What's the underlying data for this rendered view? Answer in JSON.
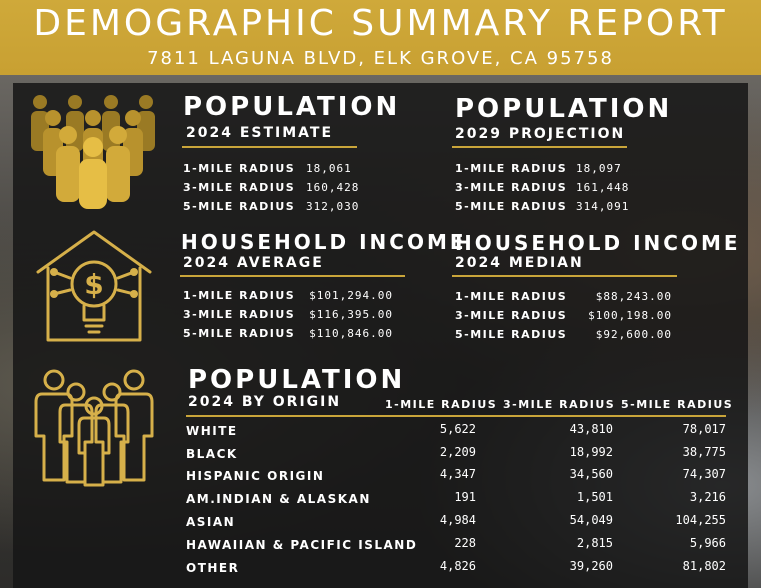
{
  "header": {
    "title": "DEMOGRAPHIC SUMMARY REPORT",
    "address": "7811 LAGUNA BLVD, ELK GROVE, CA 95758"
  },
  "colors": {
    "gold": "#c9a53a",
    "panel": "#161616",
    "text": "#ffffff"
  },
  "icons": [
    "people-group-icon",
    "house-income-icon",
    "family-group-icon"
  ],
  "population_2024": {
    "title": "POPULATION",
    "subtitle": "2024 ESTIMATE",
    "rows": [
      {
        "label": "1-MILE RADIUS",
        "value": "18,061"
      },
      {
        "label": "3-MILE RADIUS",
        "value": "160,428"
      },
      {
        "label": "5-MILE RADIUS",
        "value": "312,030"
      }
    ]
  },
  "population_2029": {
    "title": "POPULATION",
    "subtitle": "2029 PROJECTION",
    "rows": [
      {
        "label": "1-MILE RADIUS",
        "value": "18,097"
      },
      {
        "label": "3-MILE RADIUS",
        "value": "161,448"
      },
      {
        "label": "5-MILE RADIUS",
        "value": "314,091"
      }
    ]
  },
  "income_average": {
    "title": "HOUSEHOLD INCOME",
    "subtitle": "2024 AVERAGE",
    "rows": [
      {
        "label": "1-MILE RADIUS",
        "value": "$101,294.00"
      },
      {
        "label": "3-MILE RADIUS",
        "value": "$116,395.00"
      },
      {
        "label": "5-MILE RADIUS",
        "value": "$110,846.00"
      }
    ]
  },
  "income_median": {
    "title": "HOUSEHOLD INCOME",
    "subtitle": "2024 MEDIAN",
    "rows": [
      {
        "label": "1-MILE RADIUS",
        "value": "$88,243.00"
      },
      {
        "label": "3-MILE RADIUS",
        "value": "$100,198.00"
      },
      {
        "label": "5-MILE RADIUS",
        "value": "$92,600.00"
      }
    ]
  },
  "origin": {
    "title": "POPULATION",
    "subtitle": "2024 BY ORIGIN",
    "columns": [
      "1-MILE RADIUS",
      "3-MILE RADIUS",
      "5-MILE RADIUS"
    ],
    "rows": [
      {
        "label": "WHITE",
        "values": [
          "5,622",
          "43,810",
          "78,017"
        ]
      },
      {
        "label": "BLACK",
        "values": [
          "2,209",
          "18,992",
          "38,775"
        ]
      },
      {
        "label": "HISPANIC ORIGIN",
        "values": [
          "4,347",
          "34,560",
          "74,307"
        ]
      },
      {
        "label": "AM.INDIAN & ALASKAN",
        "values": [
          "191",
          "1,501",
          "3,216"
        ]
      },
      {
        "label": "ASIAN",
        "values": [
          "4,984",
          "54,049",
          "104,255"
        ]
      },
      {
        "label": "HAWAIIAN & PACIFIC ISLAND",
        "values": [
          "228",
          "2,815",
          "5,966"
        ]
      },
      {
        "label": "OTHER",
        "values": [
          "4,826",
          "39,260",
          "81,802"
        ]
      }
    ]
  }
}
